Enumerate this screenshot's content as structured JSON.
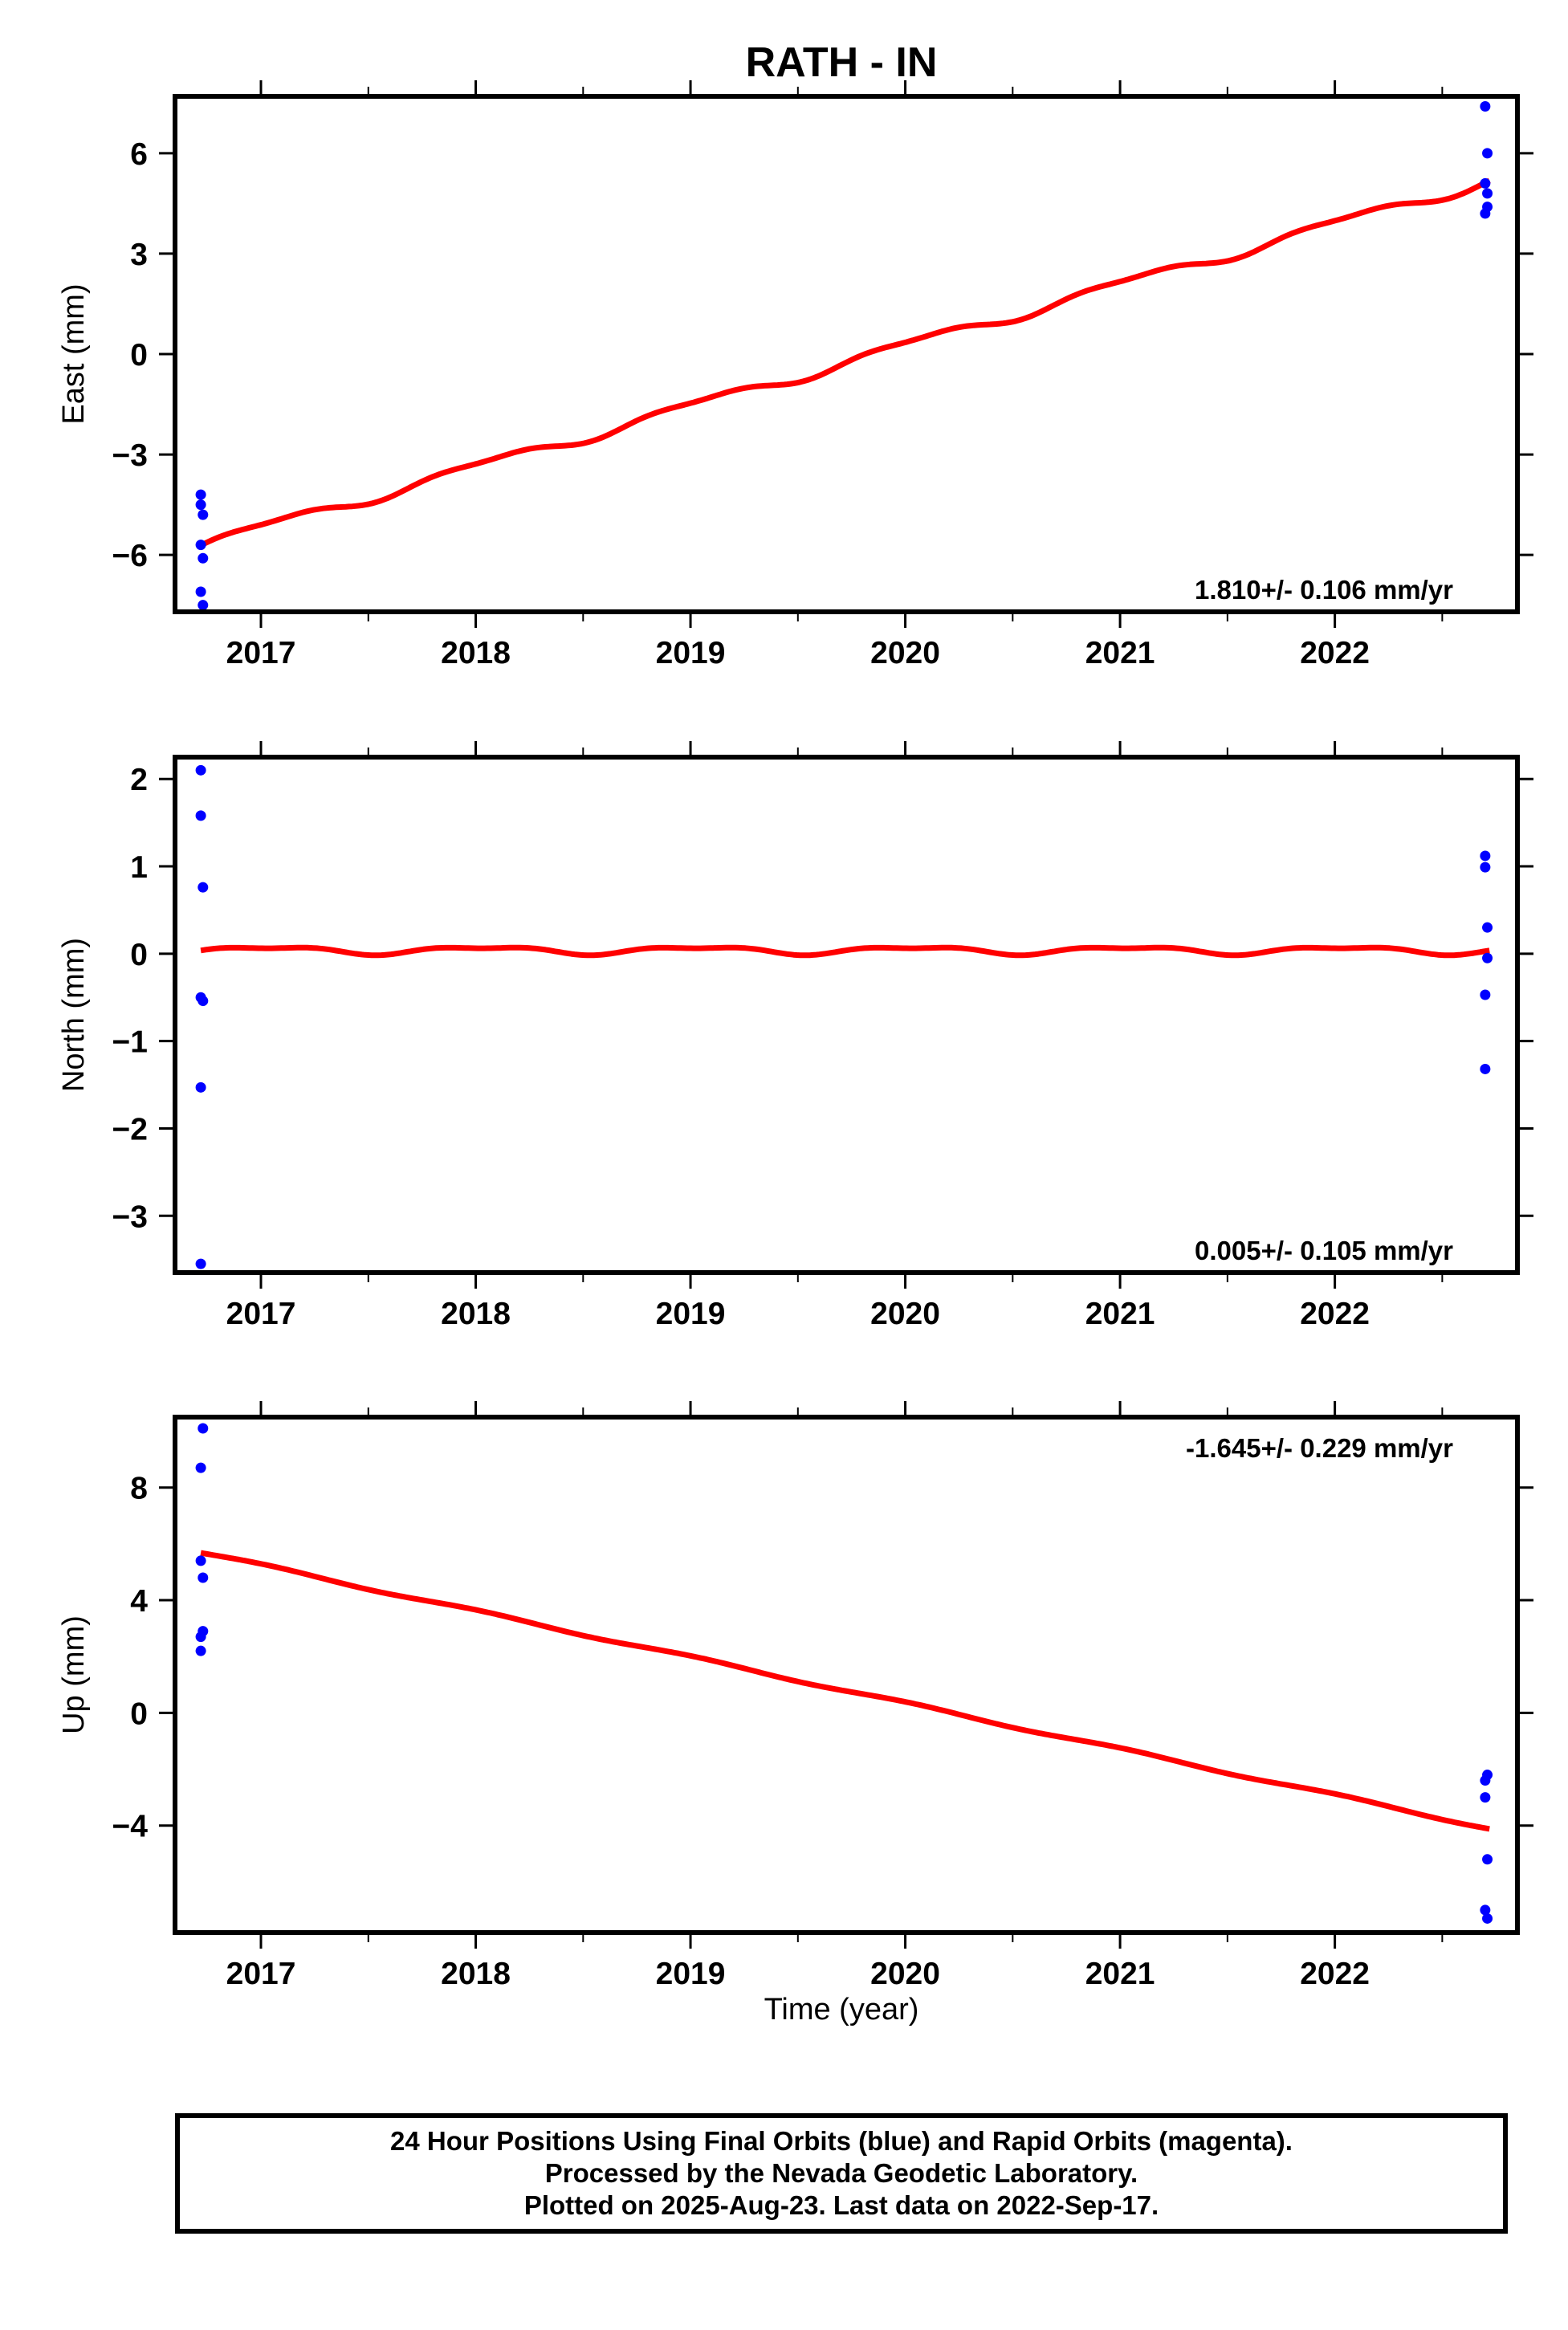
{
  "title": "RATH - IN",
  "x_label": "Time (year)",
  "colors": {
    "final": "#0000ff",
    "rapid": "#ff00ff",
    "model": "#ff0000",
    "axes": "#000000"
  },
  "footer": {
    "line1": "24 Hour Positions Using Final Orbits (blue) and Rapid Orbits (magenta).",
    "line2": "Processed by the Nevada Geodetic Laboratory.",
    "line3": "Plotted on 2025-Aug-23. Last data on 2022-Sep-17."
  },
  "chart_data": [
    {
      "type": "scatter",
      "ylabel": "East (mm)",
      "xlim": [
        2016.6,
        2022.85
      ],
      "ylim": [
        -7.7,
        7.7
      ],
      "x_ticks": [
        2017,
        2018,
        2019,
        2020,
        2021,
        2022
      ],
      "y_ticks": [
        -6,
        -3,
        0,
        3,
        6
      ],
      "y_tick_labels": [
        "−6",
        "−3",
        "0",
        "3",
        "6"
      ],
      "rate_label": "1.810+/- 0.106 mm/yr",
      "rate_position": "bottom-right",
      "points": [
        {
          "x": 2016.72,
          "y": -4.2
        },
        {
          "x": 2016.72,
          "y": -4.5
        },
        {
          "x": 2016.73,
          "y": -4.8
        },
        {
          "x": 2016.72,
          "y": -5.7
        },
        {
          "x": 2016.73,
          "y": -6.1
        },
        {
          "x": 2016.72,
          "y": -7.1
        },
        {
          "x": 2016.73,
          "y": -7.5
        },
        {
          "x": 2022.7,
          "y": 7.4
        },
        {
          "x": 2022.71,
          "y": 6.0
        },
        {
          "x": 2022.7,
          "y": 5.1
        },
        {
          "x": 2022.71,
          "y": 4.8
        },
        {
          "x": 2022.71,
          "y": 4.4
        },
        {
          "x": 2022.7,
          "y": 4.2
        }
      ],
      "model": {
        "x_start": 2016.72,
        "x_end": 2022.72,
        "y_start": -5.7,
        "y_end": 5.2,
        "amp1": 0.15,
        "amp2": 0.06
      }
    },
    {
      "type": "scatter",
      "ylabel": "North (mm)",
      "xlim": [
        2016.6,
        2022.85
      ],
      "ylim": [
        -3.65,
        2.25
      ],
      "x_ticks": [
        2017,
        2018,
        2019,
        2020,
        2021,
        2022
      ],
      "y_ticks": [
        -3,
        -2,
        -1,
        0,
        1,
        2
      ],
      "y_tick_labels": [
        "−3",
        "−2",
        "−1",
        "0",
        "1",
        "2"
      ],
      "rate_label": "0.005+/- 0.105 mm/yr",
      "rate_position": "bottom-right",
      "points": [
        {
          "x": 2016.72,
          "y": 2.1
        },
        {
          "x": 2016.72,
          "y": 1.58
        },
        {
          "x": 2016.73,
          "y": 0.76
        },
        {
          "x": 2016.72,
          "y": -0.5
        },
        {
          "x": 2016.73,
          "y": -0.54
        },
        {
          "x": 2016.72,
          "y": -1.53
        },
        {
          "x": 2016.72,
          "y": -3.55
        },
        {
          "x": 2022.7,
          "y": 1.12
        },
        {
          "x": 2022.7,
          "y": 0.99
        },
        {
          "x": 2022.71,
          "y": 0.3
        },
        {
          "x": 2022.71,
          "y": -0.05
        },
        {
          "x": 2022.7,
          "y": -0.47
        },
        {
          "x": 2022.7,
          "y": -1.32
        }
      ],
      "model": {
        "x_start": 2016.72,
        "x_end": 2022.72,
        "y_start": 0.04,
        "y_end": 0.04,
        "amp1": 0.04,
        "amp2": 0.018
      }
    },
    {
      "type": "scatter",
      "ylabel": "Up (mm)",
      "xlim": [
        2016.6,
        2022.85
      ],
      "ylim": [
        -7.8,
        10.5
      ],
      "x_ticks": [
        2017,
        2018,
        2019,
        2020,
        2021,
        2022
      ],
      "y_ticks": [
        -4,
        0,
        4,
        8
      ],
      "y_tick_labels": [
        "−4",
        "0",
        "4",
        "8"
      ],
      "rate_label": "-1.645+/- 0.229 mm/yr",
      "rate_position": "top-right",
      "points": [
        {
          "x": 2016.73,
          "y": 10.1
        },
        {
          "x": 2016.72,
          "y": 8.7
        },
        {
          "x": 2016.72,
          "y": 5.4
        },
        {
          "x": 2016.73,
          "y": 4.8
        },
        {
          "x": 2016.73,
          "y": 2.9
        },
        {
          "x": 2016.72,
          "y": 2.7
        },
        {
          "x": 2016.72,
          "y": 2.2
        },
        {
          "x": 2022.71,
          "y": -2.2
        },
        {
          "x": 2022.7,
          "y": -2.4
        },
        {
          "x": 2022.7,
          "y": -3.0
        },
        {
          "x": 2022.71,
          "y": -5.2
        },
        {
          "x": 2022.7,
          "y": -7.0
        },
        {
          "x": 2022.71,
          "y": -7.3
        }
      ],
      "model": {
        "x_start": 2016.72,
        "x_end": 2022.72,
        "y_start": 5.7,
        "y_end": -4.1,
        "amp1": 0.05,
        "amp2": 0.0
      }
    }
  ]
}
